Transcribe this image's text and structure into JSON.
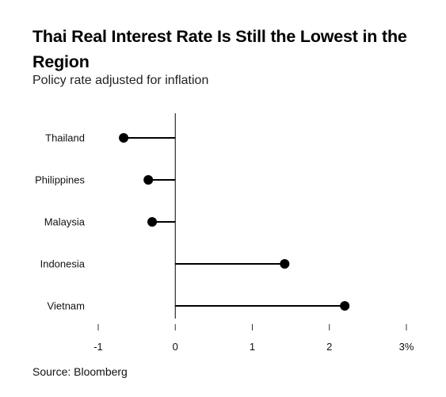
{
  "title": "Thai Real Interest Rate Is Still the Lowest in the Region",
  "subtitle": "Policy rate adjusted for inflation",
  "source": "Source: Bloomberg",
  "chart_data": {
    "type": "lollipop",
    "categories": [
      "Thailand",
      "Philippines",
      "Malaysia",
      "Indonesia",
      "Vietnam"
    ],
    "values": [
      -0.67,
      -0.35,
      -0.3,
      1.42,
      2.2
    ],
    "xlim": [
      -1,
      3
    ],
    "xticks": [
      -1,
      0,
      1,
      2,
      3
    ],
    "xtick_labels": [
      "-1",
      "0",
      "1",
      "2",
      "3%"
    ],
    "xlabel": "",
    "ylabel": "",
    "grid": false,
    "colors": {
      "marker": "#000000",
      "axis": "#000000"
    }
  }
}
